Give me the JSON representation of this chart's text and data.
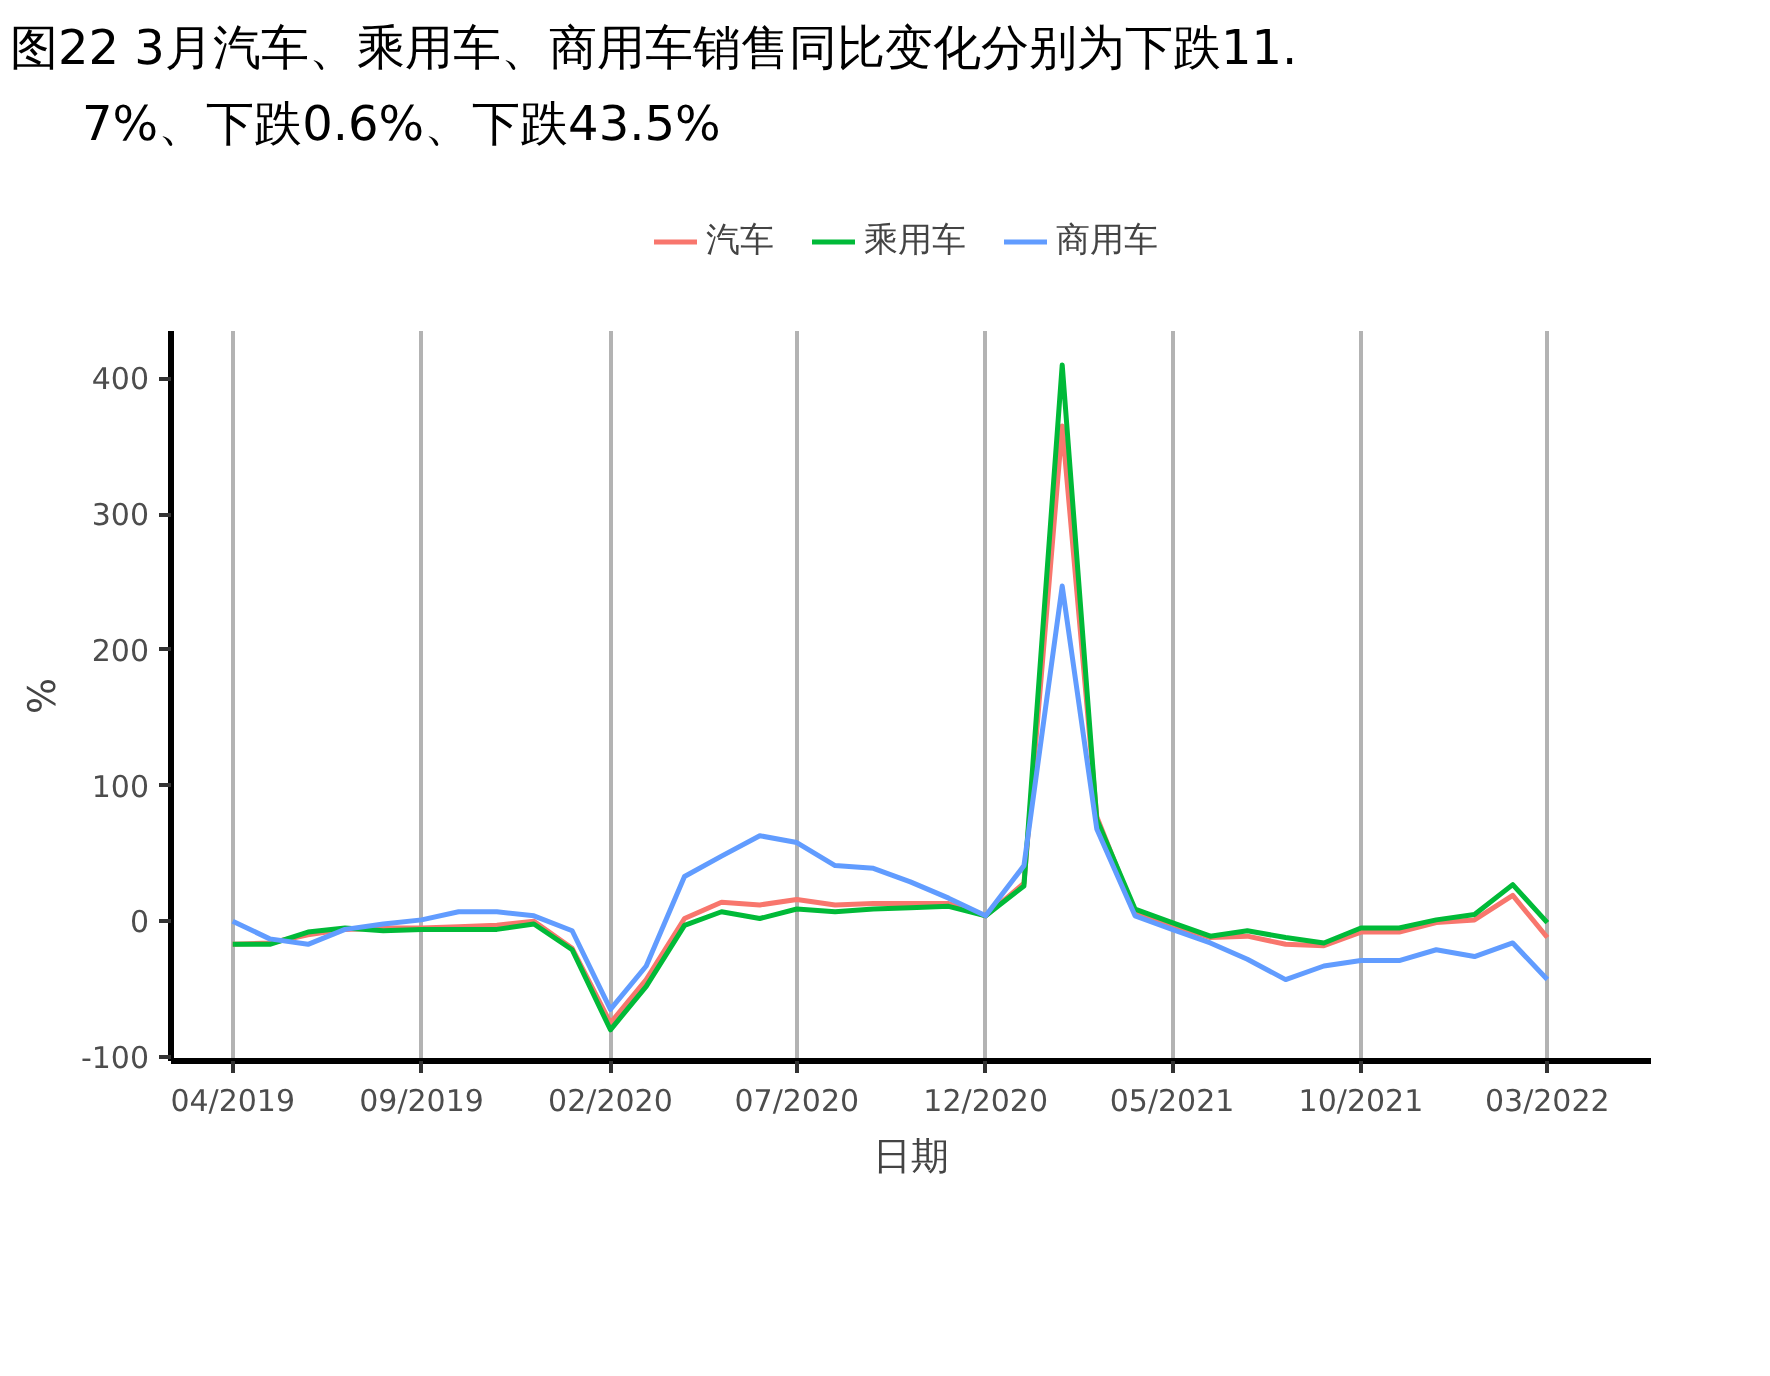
{
  "chart_data": {
    "type": "line",
    "title": "图22 3月汽车、乘用车、商用车销售同比变化分别为下跌11.7%、下跌0.6%、下跌43.5%",
    "xlabel": "日期",
    "ylabel": "%",
    "x": [
      "2019-04",
      "2019-05",
      "2019-06",
      "2019-07",
      "2019-08",
      "2019-09",
      "2019-10",
      "2019-11",
      "2019-12",
      "2020-01",
      "2020-02",
      "2020-03",
      "2020-04",
      "2020-05",
      "2020-06",
      "2020-07",
      "2020-08",
      "2020-09",
      "2020-10",
      "2020-11",
      "2020-12",
      "2021-01",
      "2021-02",
      "2021-03",
      "2021-04",
      "2021-05",
      "2021-06",
      "2021-07",
      "2021-08",
      "2021-09",
      "2021-10",
      "2021-11",
      "2021-12",
      "2022-01",
      "2022-02",
      "2022-03"
    ],
    "series": [
      {
        "name": "汽车",
        "color": "#f8766d",
        "values": [
          -17,
          -16,
          -10,
          -6,
          -5,
          -5,
          -4,
          -3,
          0,
          -20,
          -75,
          -43,
          2,
          14,
          12,
          16,
          12,
          13,
          13,
          13,
          4,
          28,
          365,
          77,
          6,
          -3,
          -12,
          -11,
          -17,
          -18,
          -8,
          -8,
          -1,
          1,
          19,
          -12
        ]
      },
      {
        "name": "乘用车",
        "color": "#00ba38",
        "values": [
          -17,
          -17,
          -8,
          -5,
          -7,
          -6,
          -6,
          -6,
          -2,
          -21,
          -80,
          -48,
          -3,
          7,
          2,
          9,
          7,
          9,
          10,
          11,
          4,
          26,
          410,
          75,
          9,
          -1,
          -11,
          -7,
          -12,
          -16,
          -5,
          -5,
          1,
          5,
          27,
          -1
        ]
      },
      {
        "name": "商用车",
        "color": "#619cff",
        "values": [
          0,
          -13,
          -17,
          -6,
          -2,
          1,
          7,
          7,
          4,
          -7,
          -65,
          -33,
          33,
          48,
          63,
          58,
          41,
          39,
          29,
          17,
          4,
          41,
          247,
          68,
          4,
          -6,
          -16,
          -28,
          -43,
          -33,
          -29,
          -29,
          -21,
          -26,
          -16,
          -43
        ]
      }
    ],
    "xlim": [
      "2019-02-10",
      "2022-05-24"
    ],
    "xticks": [
      {
        "value": "2019-04",
        "label": "04/2019"
      },
      {
        "value": "2019-09",
        "label": "09/2019"
      },
      {
        "value": "2020-02",
        "label": "02/2020"
      },
      {
        "value": "2020-07",
        "label": "07/2020"
      },
      {
        "value": "2020-12",
        "label": "12/2020"
      },
      {
        "value": "2021-05",
        "label": "05/2021"
      },
      {
        "value": "2021-10",
        "label": "10/2021"
      },
      {
        "value": "2022-03",
        "label": "03/2022"
      }
    ],
    "ylim": [
      -103,
      435
    ],
    "yticks": [
      -100,
      0,
      100,
      200,
      300,
      400
    ],
    "grid": "x",
    "legend": "top",
    "marker": "none",
    "line_style": "solid"
  }
}
